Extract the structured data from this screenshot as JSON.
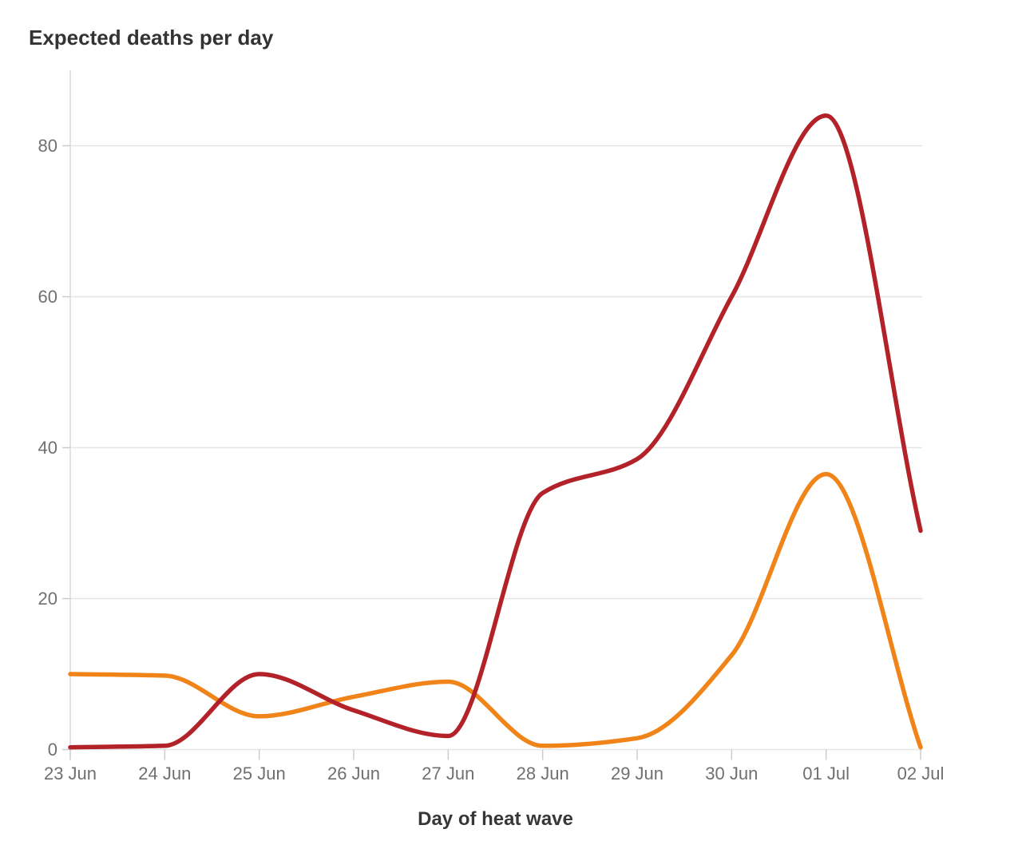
{
  "page": {
    "background": "#ffffff"
  },
  "chart_data": {
    "type": "line",
    "title": "Expected deaths per day",
    "xlabel": "Day of heat wave",
    "ylabel": "",
    "categories": [
      "23 Jun",
      "24 Jun",
      "25 Jun",
      "26 Jun",
      "27 Jun",
      "28 Jun",
      "29 Jun",
      "30 Jun",
      "01 Jul",
      "02 Jul"
    ],
    "y_ticks": [
      0,
      20,
      40,
      60,
      80
    ],
    "ylim": [
      0,
      90
    ],
    "grid": "horizontal",
    "legend_position": "none",
    "series": [
      {
        "name": "dark-red",
        "color": "#b22228",
        "values": [
          0.3,
          0.5,
          10,
          5.2,
          1.8,
          34,
          38.5,
          60,
          84,
          29
        ]
      },
      {
        "name": "orange",
        "color": "#f08418",
        "values": [
          10,
          9.8,
          4.4,
          7,
          9,
          0.5,
          1.5,
          12.5,
          36.5,
          0.3
        ]
      }
    ]
  },
  "colors": {
    "grid": "#e6e6e6",
    "axis": "#d9d9d9",
    "tick": "#cccccc",
    "tick_label": "#707070",
    "heading": "#333333"
  }
}
